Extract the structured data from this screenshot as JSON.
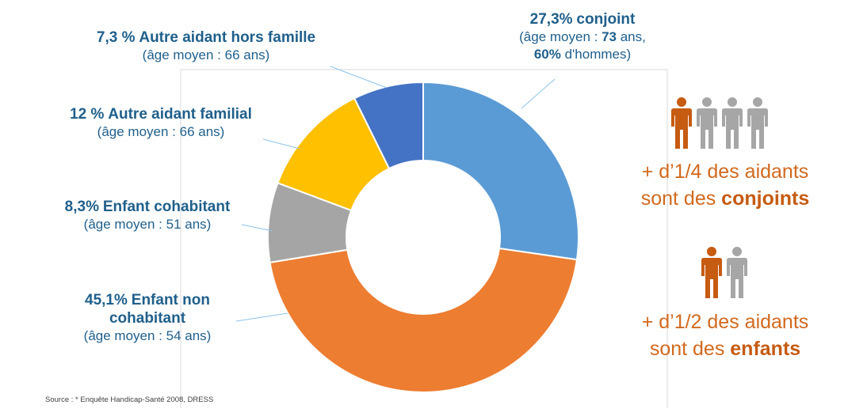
{
  "chart_data": {
    "type": "pie",
    "variant": "donut",
    "start": "top",
    "direction": "clockwise",
    "slices": [
      {
        "label": "conjoint",
        "value": 27.3,
        "pct_text": "27,3%",
        "color": "#5b9bd5",
        "age_text": "âge moyen : ",
        "age_value": "73",
        "age_unit": " ans,",
        "extra_value": "60%",
        "extra_text": " d'hommes"
      },
      {
        "label": "Enfant non cohabitant",
        "value": 45.1,
        "pct_text": "45,1%",
        "color": "#ed7d31",
        "label_line1": "Enfant non",
        "label_line2": "cohabitant",
        "age_text": "(âge moyen : 54 ans)"
      },
      {
        "label": "Enfant cohabitant",
        "value": 8.3,
        "pct_text": "8,3%",
        "color": "#a5a5a5",
        "age_text": "(âge moyen : 51 ans)"
      },
      {
        "label": "Autre aidant familial",
        "value": 12.0,
        "pct_text": "12 %",
        "color": "#ffc000",
        "age_text": "(âge moyen : 66 ans)"
      },
      {
        "label": "Autre aidant hors famille",
        "value": 7.3,
        "pct_text": "7,3 %",
        "color": "#4472c4",
        "age_text": "(âge moyen : 66 ans)"
      }
    ]
  },
  "side_notes": {
    "spouses": {
      "line1": "+ d’1/4 des aidants",
      "line2_prefix": "sont des ",
      "line2_bold": "conjoints",
      "highlighted_count": 1,
      "total_count": 4
    },
    "children": {
      "line1": "+ d’1/2 des aidants",
      "line2_prefix": "sont des ",
      "line2_bold": "enfants",
      "highlighted_count": 1,
      "total_count": 2
    }
  },
  "colors": {
    "label_text": "#1f5f8b",
    "accent_orange": "#d2691e",
    "person_highlight": "#c65b12",
    "person_gray": "#a6a6a6"
  },
  "source": "Source : * Enquête Handicap-Santé 2008, DRESS"
}
